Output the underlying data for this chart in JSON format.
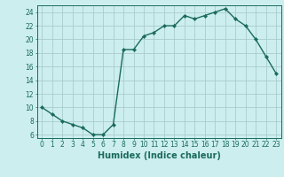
{
  "x": [
    0,
    1,
    2,
    3,
    4,
    5,
    6,
    7,
    8,
    9,
    10,
    11,
    12,
    13,
    14,
    15,
    16,
    17,
    18,
    19,
    20,
    21,
    22,
    23
  ],
  "y": [
    10,
    9,
    8,
    7.5,
    7,
    6,
    6,
    7.5,
    18.5,
    18.5,
    20.5,
    21,
    22,
    22,
    23.5,
    23,
    23.5,
    24,
    24.5,
    23,
    22,
    20,
    17.5,
    15
  ],
  "line_color": "#1a6b5a",
  "marker": "D",
  "marker_size": 2.2,
  "bg_color": "#cceeee",
  "grid_color": "#aacccc",
  "xlabel": "Humidex (Indice chaleur)",
  "xlim": [
    -0.5,
    23.5
  ],
  "ylim": [
    5.5,
    25
  ],
  "yticks": [
    6,
    8,
    10,
    12,
    14,
    16,
    18,
    20,
    22,
    24
  ],
  "xticks": [
    0,
    1,
    2,
    3,
    4,
    5,
    6,
    7,
    8,
    9,
    10,
    11,
    12,
    13,
    14,
    15,
    16,
    17,
    18,
    19,
    20,
    21,
    22,
    23
  ],
  "tick_label_fontsize": 5.5,
  "xlabel_fontsize": 7,
  "line_width": 1.0
}
